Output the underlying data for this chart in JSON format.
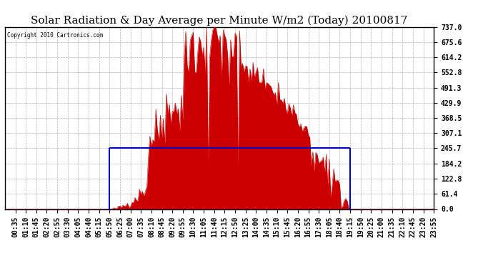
{
  "title": "Solar Radiation & Day Average per Minute W/m2 (Today) 20100817",
  "copyright": "Copyright 2010 Cartronics.com",
  "background_color": "#ffffff",
  "y_min": 0.0,
  "y_max": 737.0,
  "y_ticks": [
    0.0,
    61.4,
    122.8,
    184.2,
    245.7,
    307.1,
    368.5,
    429.9,
    491.3,
    552.8,
    614.2,
    675.6,
    737.0
  ],
  "day_average": 245.7,
  "sunrise_minute": 350,
  "sunset_minute": 1156,
  "total_minutes": 1440,
  "n_points": 288,
  "grid_color": "#aaaaaa",
  "red_color": "#cc0000",
  "blue_color": "#0000cc",
  "title_fontsize": 11,
  "tick_fontsize": 7,
  "x_label_step_minutes": 35,
  "x_label_start_minutes": 35
}
